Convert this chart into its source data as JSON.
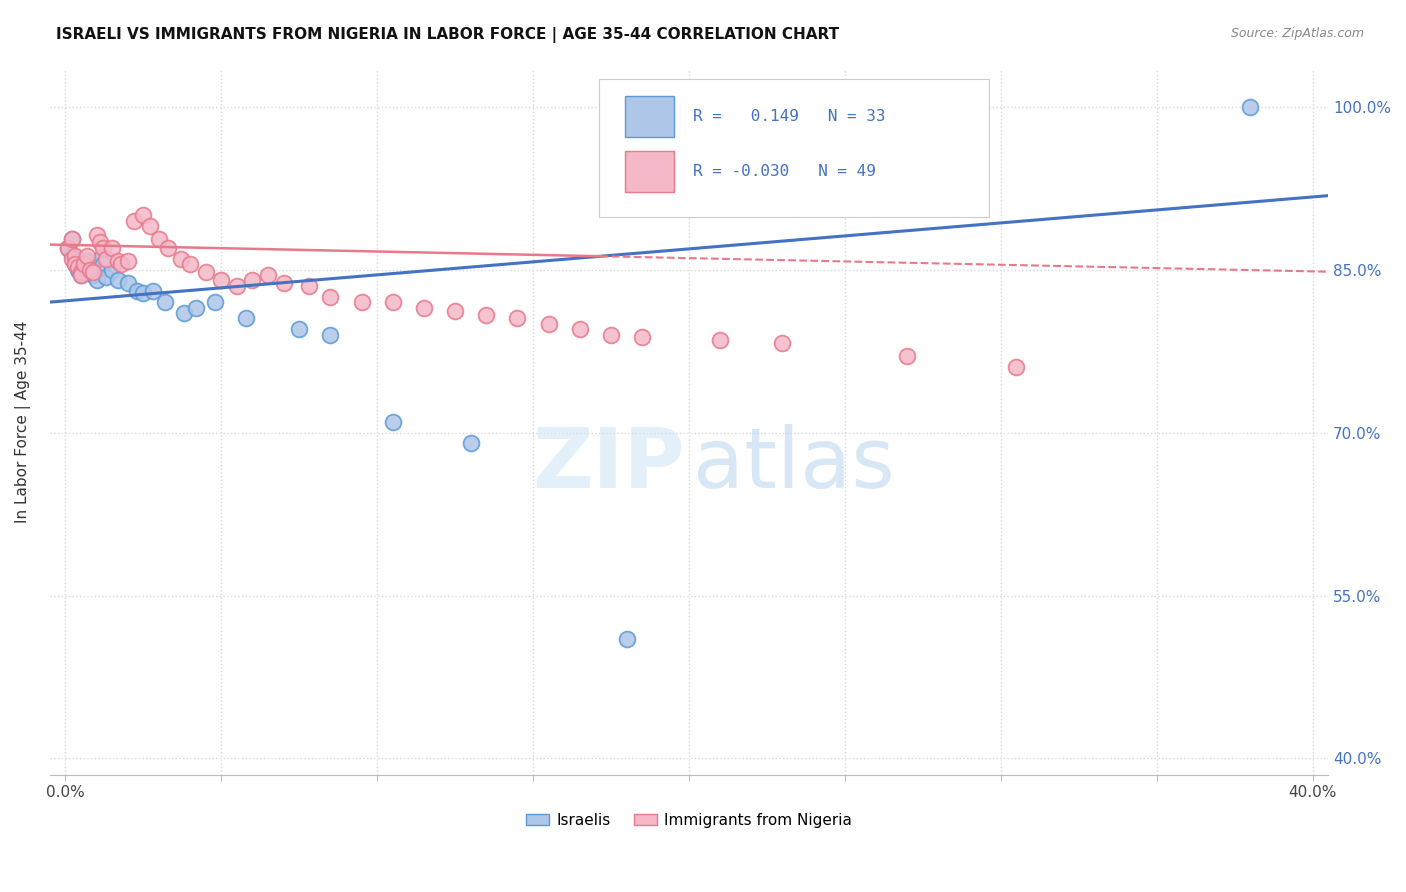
{
  "title": "ISRAELI VS IMMIGRANTS FROM NIGERIA IN LABOR FORCE | AGE 35-44 CORRELATION CHART",
  "source": "Source: ZipAtlas.com",
  "ylabel": "In Labor Force | Age 35-44",
  "xlim": [
    -0.005,
    0.405
  ],
  "ylim": [
    0.385,
    1.035
  ],
  "yticks": [
    0.4,
    0.55,
    0.7,
    0.85,
    1.0
  ],
  "ytick_labels": [
    "40.0%",
    "55.0%",
    "70.0%",
    "85.0%",
    "100.0%"
  ],
  "xticks": [
    0.0,
    0.05,
    0.1,
    0.15,
    0.2,
    0.25,
    0.3,
    0.35,
    0.4
  ],
  "xtick_labels": [
    "0.0%",
    "",
    "",
    "",
    "",
    "",
    "",
    "",
    "40.0%"
  ],
  "israeli_color": "#aec6e8",
  "nigerian_color": "#f4b8c8",
  "israeli_edge": "#5b9bd5",
  "nigerian_edge": "#e8788a",
  "israeli_R": 0.149,
  "nigerian_R": -0.03,
  "israeli_N": 33,
  "nigerian_N": 49,
  "israeli_line_color": "#4472c4",
  "nigerian_line_color": "#e8788a",
  "background_color": "#ffffff",
  "grid_color": "#d9d9d9",
  "israeli_x": [
    0.001,
    0.002,
    0.002,
    0.003,
    0.003,
    0.004,
    0.005,
    0.005,
    0.006,
    0.007,
    0.008,
    0.009,
    0.01,
    0.011,
    0.012,
    0.013,
    0.015,
    0.017,
    0.02,
    0.023,
    0.025,
    0.028,
    0.032,
    0.038,
    0.042,
    0.048,
    0.058,
    0.075,
    0.085,
    0.105,
    0.13,
    0.18,
    0.38
  ],
  "israeli_y": [
    0.87,
    0.878,
    0.863,
    0.86,
    0.855,
    0.85,
    0.845,
    0.848,
    0.852,
    0.858,
    0.848,
    0.845,
    0.84,
    0.86,
    0.855,
    0.843,
    0.85,
    0.84,
    0.838,
    0.83,
    0.828,
    0.83,
    0.82,
    0.81,
    0.815,
    0.82,
    0.805,
    0.795,
    0.79,
    0.71,
    0.69,
    0.51,
    1.0
  ],
  "nigerian_x": [
    0.001,
    0.002,
    0.002,
    0.003,
    0.003,
    0.004,
    0.005,
    0.005,
    0.006,
    0.007,
    0.008,
    0.009,
    0.01,
    0.011,
    0.012,
    0.013,
    0.015,
    0.017,
    0.018,
    0.02,
    0.022,
    0.025,
    0.027,
    0.03,
    0.033,
    0.037,
    0.04,
    0.045,
    0.05,
    0.055,
    0.06,
    0.065,
    0.07,
    0.078,
    0.085,
    0.095,
    0.105,
    0.115,
    0.125,
    0.135,
    0.145,
    0.155,
    0.165,
    0.175,
    0.185,
    0.21,
    0.23,
    0.27,
    0.305
  ],
  "nigerian_y": [
    0.87,
    0.878,
    0.86,
    0.862,
    0.855,
    0.852,
    0.848,
    0.845,
    0.855,
    0.862,
    0.85,
    0.848,
    0.882,
    0.875,
    0.87,
    0.86,
    0.87,
    0.858,
    0.855,
    0.858,
    0.895,
    0.9,
    0.89,
    0.878,
    0.87,
    0.86,
    0.855,
    0.848,
    0.84,
    0.835,
    0.84,
    0.845,
    0.838,
    0.835,
    0.825,
    0.82,
    0.82,
    0.815,
    0.812,
    0.808,
    0.805,
    0.8,
    0.795,
    0.79,
    0.788,
    0.785,
    0.782,
    0.77,
    0.76
  ],
  "watermark_zip_color": "#c8dff5",
  "watermark_atlas_color": "#b0ccee"
}
